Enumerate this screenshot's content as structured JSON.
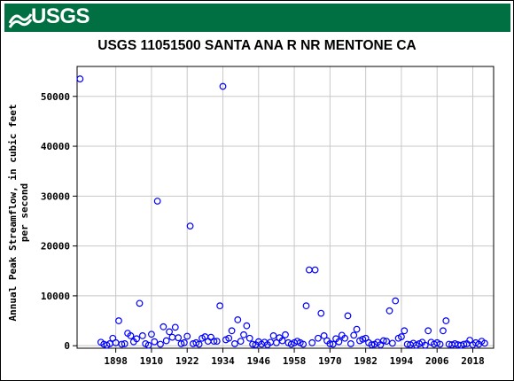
{
  "header": {
    "logo_text": "USGS"
  },
  "colors": {
    "banner": "#006f41",
    "marker": "#0000ff",
    "grid": "#c8c8c8"
  },
  "chart_data": {
    "type": "scatter",
    "title": "USGS 11051500 SANTA ANA R NR MENTONE CA",
    "ylabel_lines": [
      "Annual Peak Streamflow, in cubic feet",
      "per second"
    ],
    "xlabel": "",
    "xlim": [
      1885,
      2025
    ],
    "ylim": [
      -500,
      56000
    ],
    "x_ticks": [
      1898,
      1910,
      1922,
      1934,
      1946,
      1958,
      1970,
      1982,
      1994,
      2006,
      2018
    ],
    "y_ticks": [
      0,
      10000,
      20000,
      30000,
      40000,
      50000
    ],
    "grid": true,
    "marker": "open-circle",
    "points": [
      [
        1886,
        53500
      ],
      [
        1893,
        700
      ],
      [
        1894,
        300
      ],
      [
        1895,
        100
      ],
      [
        1896,
        400
      ],
      [
        1897,
        1500
      ],
      [
        1898,
        600
      ],
      [
        1899,
        5000
      ],
      [
        1900,
        300
      ],
      [
        1901,
        400
      ],
      [
        1902,
        2500
      ],
      [
        1903,
        2000
      ],
      [
        1904,
        800
      ],
      [
        1905,
        1400
      ],
      [
        1906,
        8500
      ],
      [
        1907,
        2000
      ],
      [
        1908,
        400
      ],
      [
        1909,
        100
      ],
      [
        1910,
        2300
      ],
      [
        1911,
        800
      ],
      [
        1912,
        29000
      ],
      [
        1913,
        300
      ],
      [
        1914,
        3800
      ],
      [
        1915,
        1000
      ],
      [
        1916,
        2800
      ],
      [
        1917,
        1700
      ],
      [
        1918,
        3700
      ],
      [
        1919,
        1600
      ],
      [
        1920,
        400
      ],
      [
        1921,
        600
      ],
      [
        1922,
        1900
      ],
      [
        1923,
        24000
      ],
      [
        1924,
        400
      ],
      [
        1925,
        600
      ],
      [
        1926,
        300
      ],
      [
        1927,
        1500
      ],
      [
        1928,
        1800
      ],
      [
        1929,
        900
      ],
      [
        1930,
        1700
      ],
      [
        1931,
        900
      ],
      [
        1932,
        900
      ],
      [
        1933,
        8000
      ],
      [
        1934,
        52000
      ],
      [
        1935,
        1200
      ],
      [
        1936,
        1500
      ],
      [
        1937,
        3000
      ],
      [
        1938,
        400
      ],
      [
        1939,
        5200
      ],
      [
        1940,
        900
      ],
      [
        1941,
        2200
      ],
      [
        1942,
        4000
      ],
      [
        1943,
        1500
      ],
      [
        1944,
        300
      ],
      [
        1945,
        200
      ],
      [
        1946,
        800
      ],
      [
        1947,
        300
      ],
      [
        1948,
        700
      ],
      [
        1949,
        200
      ],
      [
        1950,
        700
      ],
      [
        1951,
        2000
      ],
      [
        1952,
        600
      ],
      [
        1953,
        1600
      ],
      [
        1954,
        1000
      ],
      [
        1955,
        2200
      ],
      [
        1956,
        600
      ],
      [
        1957,
        300
      ],
      [
        1958,
        600
      ],
      [
        1959,
        900
      ],
      [
        1960,
        600
      ],
      [
        1961,
        300
      ],
      [
        1962,
        8000
      ],
      [
        1963,
        15200
      ],
      [
        1964,
        600
      ],
      [
        1965,
        15200
      ],
      [
        1966,
        1500
      ],
      [
        1967,
        6500
      ],
      [
        1968,
        2000
      ],
      [
        1969,
        1000
      ],
      [
        1970,
        400
      ],
      [
        1971,
        300
      ],
      [
        1972,
        1400
      ],
      [
        1973,
        800
      ],
      [
        1974,
        2100
      ],
      [
        1975,
        1500
      ],
      [
        1976,
        6000
      ],
      [
        1977,
        400
      ],
      [
        1978,
        2100
      ],
      [
        1979,
        3300
      ],
      [
        1980,
        1000
      ],
      [
        1981,
        1300
      ],
      [
        1982,
        1500
      ],
      [
        1983,
        600
      ],
      [
        1984,
        200
      ],
      [
        1985,
        300
      ],
      [
        1986,
        700
      ],
      [
        1987,
        200
      ],
      [
        1988,
        1000
      ],
      [
        1989,
        900
      ],
      [
        1990,
        7000
      ],
      [
        1991,
        500
      ],
      [
        1992,
        9000
      ],
      [
        1993,
        1500
      ],
      [
        1994,
        1800
      ],
      [
        1995,
        3000
      ],
      [
        1996,
        300
      ],
      [
        1997,
        200
      ],
      [
        1998,
        500
      ],
      [
        1999,
        100
      ],
      [
        2000,
        400
      ],
      [
        2001,
        700
      ],
      [
        2002,
        100
      ],
      [
        2003,
        3000
      ],
      [
        2004,
        700
      ],
      [
        2005,
        300
      ],
      [
        2006,
        600
      ],
      [
        2007,
        300
      ],
      [
        2008,
        3000
      ],
      [
        2009,
        5000
      ],
      [
        2010,
        300
      ],
      [
        2011,
        200
      ],
      [
        2012,
        400
      ],
      [
        2013,
        200
      ],
      [
        2014,
        100
      ],
      [
        2015,
        300
      ],
      [
        2016,
        400
      ],
      [
        2017,
        1100
      ],
      [
        2018,
        200
      ],
      [
        2019,
        600
      ],
      [
        2020,
        300
      ],
      [
        2021,
        900
      ],
      [
        2022,
        500
      ]
    ]
  }
}
